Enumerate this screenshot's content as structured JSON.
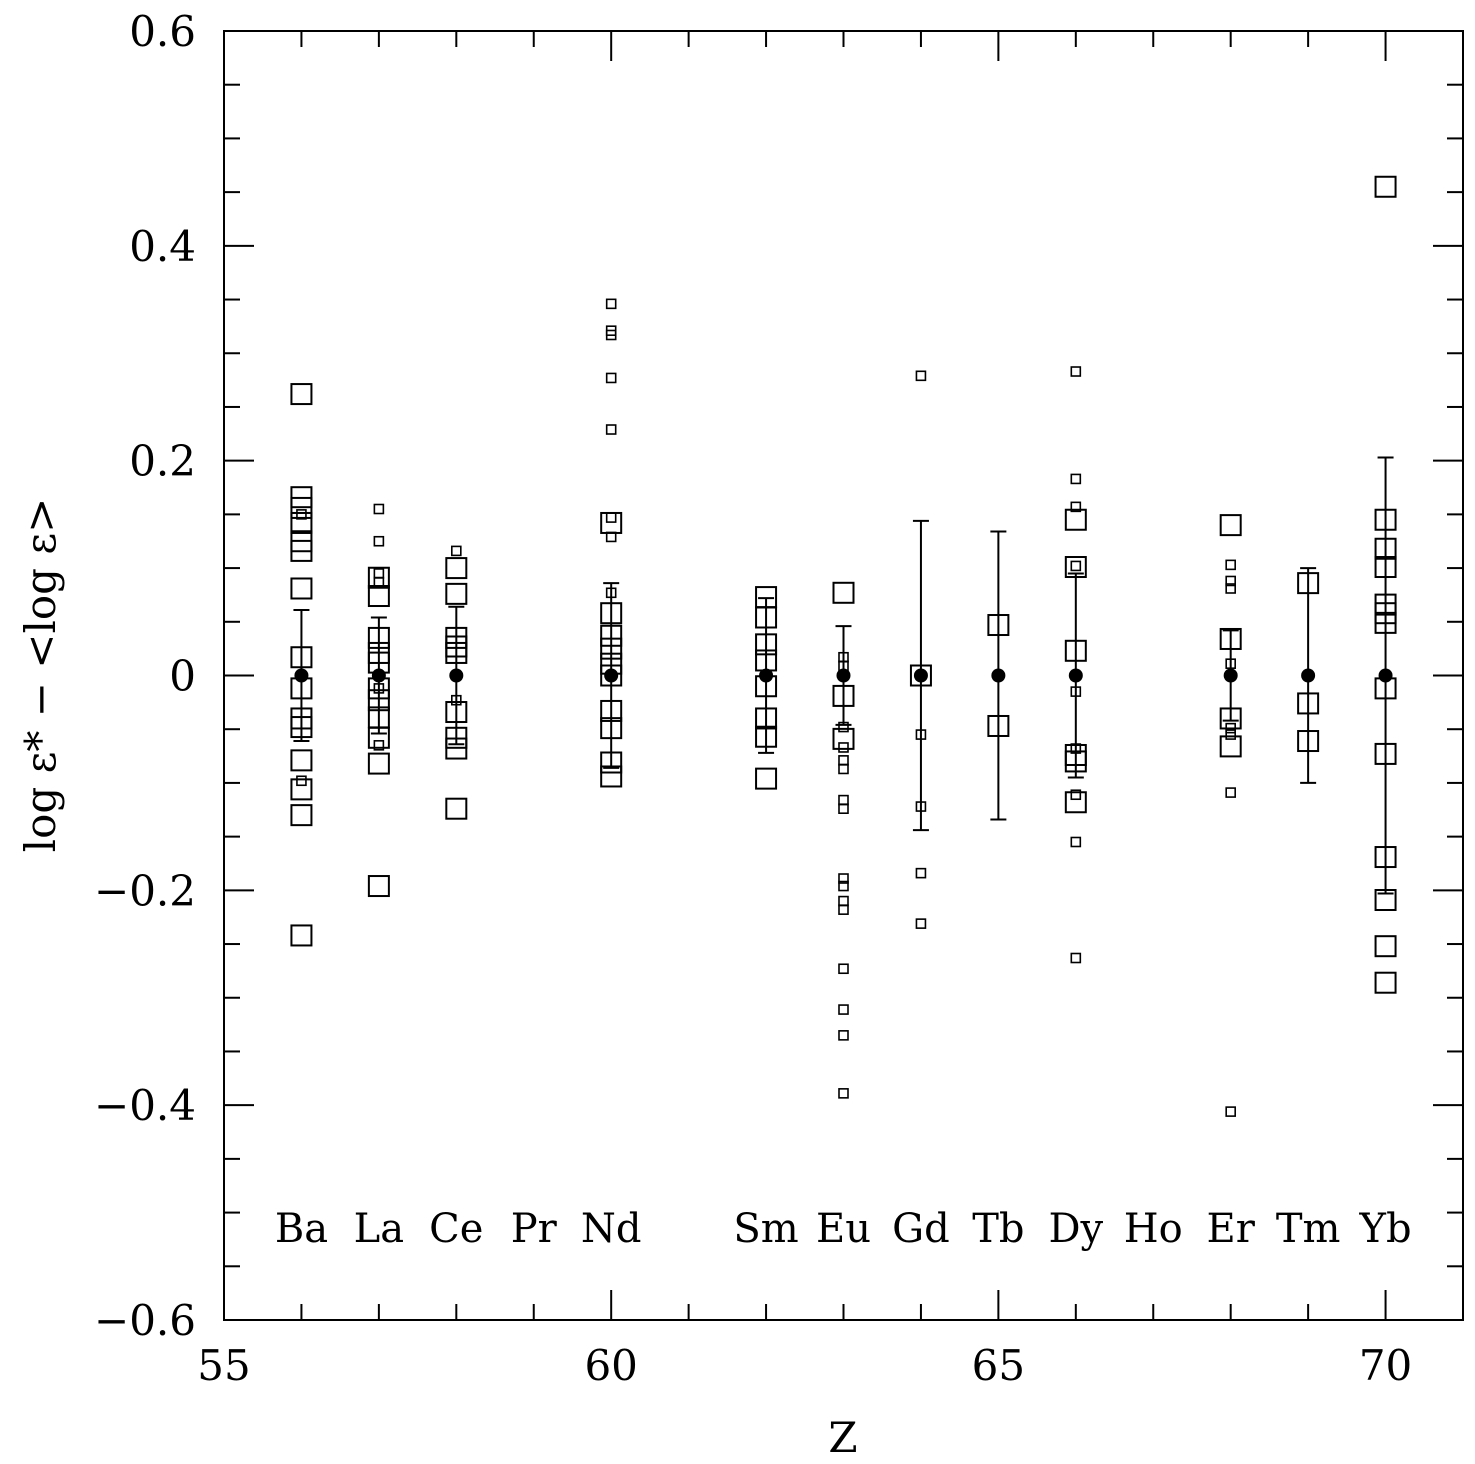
{
  "chart_data": {
    "type": "scatter",
    "x_label": "Z",
    "y_label": "log ε* − <log ε>",
    "xlim": [
      55,
      71
    ],
    "ylim": [
      -0.6,
      0.6
    ],
    "xticks": [
      55,
      60,
      65,
      70
    ],
    "xminor": [
      56,
      57,
      58,
      59,
      61,
      62,
      63,
      64,
      66,
      67,
      68,
      69
    ],
    "yticks": [
      {
        "value": -0.6,
        "label": "−0.6"
      },
      {
        "value": -0.4,
        "label": "−0.4"
      },
      {
        "value": -0.2,
        "label": "−0.2"
      },
      0,
      0.2,
      0.4,
      0.6
    ],
    "yminor": [
      -0.55,
      -0.5,
      -0.45,
      -0.35,
      -0.3,
      -0.25,
      -0.15,
      -0.1,
      -0.05,
      0.05,
      0.1,
      0.15,
      0.25,
      0.3,
      0.35,
      0.45,
      0.5,
      0.55
    ],
    "annotations": [
      {
        "text": "Ba",
        "x": 56
      },
      {
        "text": "La",
        "x": 57
      },
      {
        "text": "Ce",
        "x": 58
      },
      {
        "text": "Pr",
        "x": 59
      },
      {
        "text": "Nd",
        "x": 60
      },
      {
        "text": "Sm",
        "x": 62
      },
      {
        "text": "Eu",
        "x": 63
      },
      {
        "text": "Gd",
        "x": 64
      },
      {
        "text": "Tb",
        "x": 65
      },
      {
        "text": "Dy",
        "x": 66
      },
      {
        "text": "Ho",
        "x": 67
      },
      {
        "text": "Er",
        "x": 68
      },
      {
        "text": "Tm",
        "x": 69
      },
      {
        "text": "Yb",
        "x": 70
      }
    ],
    "series": [
      {
        "marker": "square-large",
        "color": "#000000",
        "x": [
          56,
          56,
          56,
          56,
          56,
          56,
          56,
          56,
          56,
          56,
          56,
          56,
          56,
          56,
          56,
          57,
          57,
          57,
          57,
          57,
          57,
          57,
          57,
          57,
          57,
          57,
          58,
          58,
          58,
          58,
          58,
          58,
          58,
          58,
          58,
          60,
          60,
          60,
          60,
          60,
          60,
          60,
          60,
          60,
          60,
          62,
          62,
          62,
          62,
          62,
          62,
          62,
          62,
          63,
          63,
          63,
          64,
          65,
          65,
          66,
          66,
          66,
          66,
          66,
          66,
          68,
          68,
          68,
          68,
          69,
          69,
          69,
          70,
          70,
          70,
          70,
          70,
          70,
          70,
          70,
          70,
          70,
          70,
          70,
          70
        ],
        "y": [
          0.262,
          0.166,
          0.156,
          0.142,
          0.125,
          0.116,
          0.081,
          0.017,
          -0.012,
          -0.04,
          -0.048,
          -0.079,
          -0.106,
          -0.13,
          -0.242,
          0.091,
          0.074,
          0.035,
          0.021,
          0.012,
          -0.012,
          -0.023,
          -0.039,
          -0.058,
          -0.082,
          -0.196,
          0.1,
          0.076,
          0.035,
          0.027,
          0.021,
          -0.034,
          -0.058,
          -0.068,
          -0.124,
          0.142,
          0.058,
          0.037,
          0.025,
          0.011,
          0,
          -0.033,
          -0.049,
          -0.081,
          -0.094,
          0.073,
          0.054,
          0.029,
          0.014,
          -0.01,
          -0.04,
          -0.057,
          -0.096,
          0.077,
          -0.019,
          -0.059,
          0,
          0.047,
          -0.047,
          0.145,
          0.101,
          0.023,
          -0.074,
          -0.08,
          -0.118,
          0.14,
          0.034,
          -0.04,
          -0.066,
          0.086,
          -0.026,
          -0.061,
          0.455,
          0.145,
          0.118,
          0.101,
          0.066,
          0.058,
          0.049,
          -0.012,
          -0.073,
          -0.169,
          -0.209,
          -0.252,
          -0.286
        ]
      },
      {
        "marker": "square-small",
        "color": "#000000",
        "x": [
          56,
          56,
          57,
          57,
          57,
          57,
          57,
          57,
          58,
          58,
          60,
          60,
          60,
          60,
          60,
          60,
          60,
          60,
          63,
          63,
          63,
          63,
          63,
          63,
          63,
          63,
          63,
          63,
          63,
          63,
          63,
          63,
          63,
          63,
          64,
          64,
          64,
          64,
          64,
          66,
          66,
          66,
          66,
          66,
          66,
          66,
          66,
          66,
          68,
          68,
          68,
          68,
          68,
          68,
          68,
          68
        ],
        "y": [
          0.15,
          -0.098,
          0.155,
          0.125,
          0.095,
          0.087,
          -0.012,
          -0.065,
          0.116,
          -0.023,
          0.346,
          0.321,
          0.317,
          0.277,
          0.229,
          0.147,
          0.129,
          0.077,
          0.017,
          0.009,
          -0.048,
          -0.067,
          -0.079,
          -0.087,
          -0.116,
          -0.124,
          -0.189,
          -0.196,
          -0.21,
          -0.218,
          -0.273,
          -0.311,
          -0.335,
          -0.389,
          0.279,
          -0.055,
          -0.122,
          -0.184,
          -0.231,
          0.283,
          0.183,
          0.157,
          0.102,
          -0.015,
          -0.068,
          -0.111,
          -0.155,
          -0.263,
          0.103,
          0.088,
          0.081,
          0.011,
          -0.049,
          -0.055,
          -0.109,
          -0.406
        ]
      },
      {
        "marker": "circle",
        "color": "#000000",
        "x": [
          56,
          57,
          58,
          60,
          62,
          63,
          64,
          65,
          66,
          68,
          69,
          70
        ],
        "y": [
          0,
          0,
          0,
          0,
          0,
          0,
          0,
          0,
          0,
          0,
          0,
          0
        ],
        "error": [
          0.061,
          0.054,
          0.064,
          0.086,
          0.072,
          0.046,
          0.144,
          0.134,
          0.095,
          0.042,
          0.1,
          0.203
        ]
      }
    ]
  }
}
